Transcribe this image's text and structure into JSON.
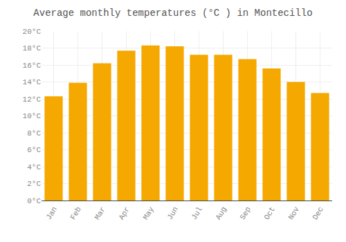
{
  "chart_data": {
    "type": "bar",
    "title": "Average monthly temperatures (°C ) in Montecillo",
    "categories": [
      "Jan",
      "Feb",
      "Mar",
      "Apr",
      "May",
      "Jun",
      "Jul",
      "Aug",
      "Sep",
      "Oct",
      "Nov",
      "Dec"
    ],
    "values": [
      12.3,
      13.9,
      16.2,
      17.7,
      18.3,
      18.2,
      17.2,
      17.2,
      16.7,
      15.6,
      14.0,
      12.7
    ],
    "color": "#F5A800",
    "ylim": [
      0,
      20
    ],
    "yticks": [
      {
        "value": 0,
        "label": "0°C"
      },
      {
        "value": 2,
        "label": "2°C"
      },
      {
        "value": 4,
        "label": "4°C"
      },
      {
        "value": 6,
        "label": "6°C"
      },
      {
        "value": 8,
        "label": "8°C"
      },
      {
        "value": 10,
        "label": "10°C"
      },
      {
        "value": 12,
        "label": "12°C"
      },
      {
        "value": 14,
        "label": "14°C"
      },
      {
        "value": 16,
        "label": "16°C"
      },
      {
        "value": 18,
        "label": "18°C"
      },
      {
        "value": 20,
        "label": "20°C"
      }
    ],
    "grid": true
  }
}
